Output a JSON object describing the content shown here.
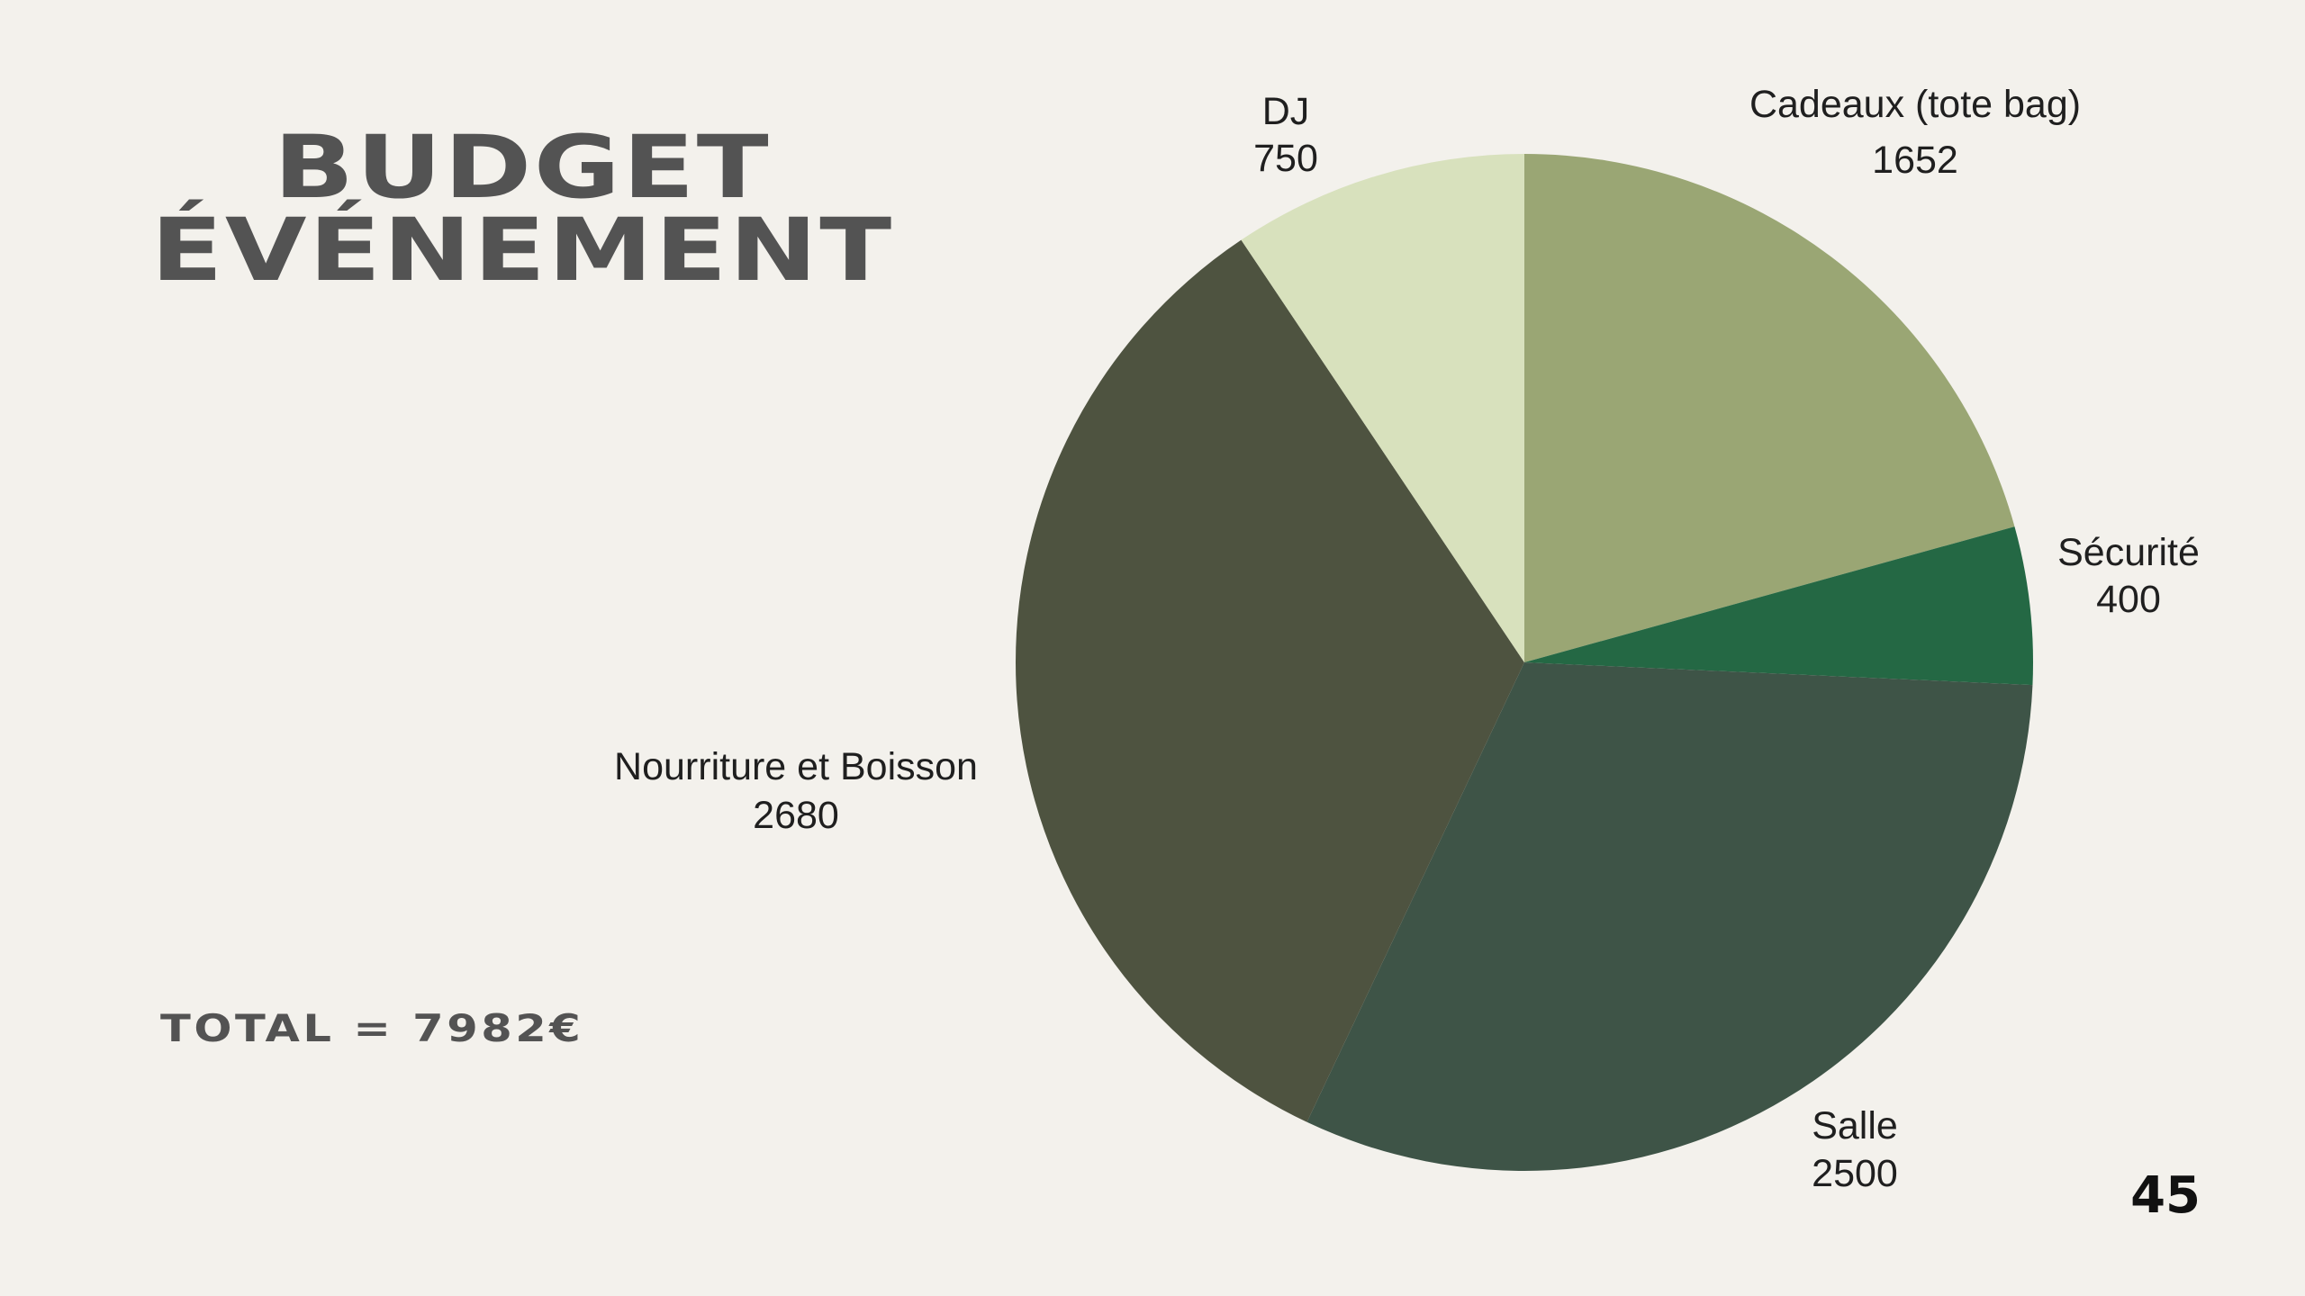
{
  "slide": {
    "title_line1": "BUDGET",
    "title_line2": "ÉVÉNEMENT",
    "total": "TOTAL = 7982€",
    "page_number": "45"
  },
  "chart_data": {
    "type": "pie",
    "title": "",
    "start_angle_deg": 0,
    "direction": "clockwise",
    "slices": [
      {
        "label": "Cadeaux (tote bag)",
        "value": 1652,
        "color": "#9aa674"
      },
      {
        "label": "Sécurité",
        "value": 400,
        "color": "#246844"
      },
      {
        "label": "Salle",
        "value": 2500,
        "color": "#3e5447"
      },
      {
        "label": "Nourriture et Boisson",
        "value": 2680,
        "color": "#4e5340"
      },
      {
        "label": "DJ",
        "value": 750,
        "color": "#d8e1bd"
      },
      {
        "label": "",
        "value": 0,
        "color": "#b0bc8f"
      }
    ]
  }
}
